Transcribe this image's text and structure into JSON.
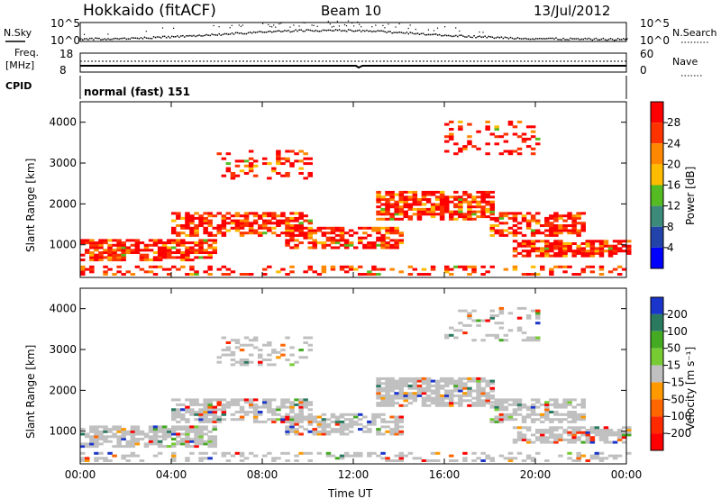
{
  "header": {
    "station": "Hokkaido (fitACF)",
    "beam": "Beam 10",
    "date": "13/Jul/2012"
  },
  "top_panels": {
    "nsky": {
      "label": "N.Sky",
      "tick_top": "10^5",
      "tick_bottom": "10^0",
      "right_label": "N.Search",
      "right_tick_top": "10^5",
      "right_tick_bottom": "10^0"
    },
    "freq": {
      "label_1": "Freq.",
      "label_2": "[MHz]",
      "tick_top": "18",
      "tick_bottom": "8",
      "right_label": "Nave",
      "right_tick_top": "60",
      "right_tick_bottom": "0"
    },
    "cpid": {
      "label": "CPID",
      "value": "normal (fast) 151"
    }
  },
  "colorbars": {
    "power": {
      "label": "Power [dB]",
      "ticks": [
        "28",
        "24",
        "20",
        "16",
        "12",
        "8",
        "4"
      ],
      "colors": [
        "#ff0000",
        "#ff3300",
        "#ff8800",
        "#ffbb00",
        "#55bb22",
        "#3b8a7a",
        "#2244aa",
        "#0000ff"
      ]
    },
    "velocity": {
      "label": "Velocity [m s⁻¹]",
      "ticks": [
        "200",
        "100",
        "50",
        "15",
        "-15",
        "-50",
        "-100",
        "-200"
      ],
      "colors": [
        "#1a35cc",
        "#2a7a60",
        "#44aa22",
        "#77cc33",
        "#c0c0c0",
        "#ff9900",
        "#ff6600",
        "#ff2a00",
        "#ff0000"
      ]
    }
  },
  "chart_data": [
    {
      "type": "heatmap",
      "name": "power",
      "ylabel": "Slant Range [km]",
      "xlabel": "",
      "xlim": [
        0,
        24
      ],
      "ylim": [
        200,
        4500
      ],
      "yticks": [
        "1000",
        "2000",
        "3000",
        "4000"
      ],
      "xticks": [
        "00:00",
        "04:00",
        "08:00",
        "12:00",
        "16:00",
        "20:00",
        "00:00"
      ]
    },
    {
      "type": "heatmap",
      "name": "velocity",
      "ylabel": "Slant Range [km]",
      "xlabel": "Time UT",
      "xlim": [
        0,
        24
      ],
      "ylim": [
        200,
        4500
      ],
      "yticks": [
        "1000",
        "2000",
        "3000",
        "4000"
      ],
      "xticks": [
        "00:00",
        "04:00",
        "08:00",
        "12:00",
        "16:00",
        "20:00",
        "00:00"
      ]
    }
  ]
}
